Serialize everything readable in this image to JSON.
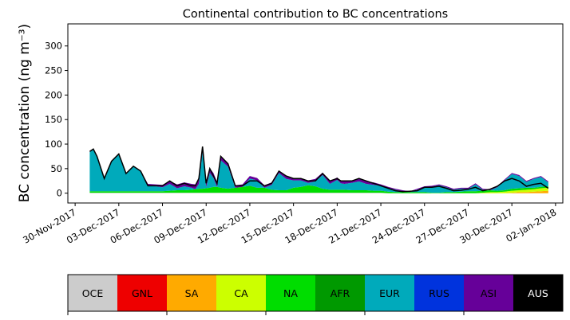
{
  "chart_data": {
    "type": "area",
    "title": "Continental contribution to BC concentrations",
    "ylabel": "BC concentration (ng m⁻³)",
    "xlabel": "",
    "xlim": [
      "2017-11-29T12:00",
      "2018-01-02T12:00"
    ],
    "ylim": [
      -20,
      345
    ],
    "yticks": [
      0,
      50,
      100,
      150,
      200,
      250,
      300
    ],
    "xticks": [
      "2017-11-30",
      "2017-12-03",
      "2017-12-06",
      "2017-12-09",
      "2017-12-12",
      "2017-12-15",
      "2017-12-18",
      "2017-12-21",
      "2017-12-24",
      "2017-12-27",
      "2017-12-30",
      "2018-01-02"
    ],
    "xtick_labels": [
      "30-Nov-2017",
      "03-Dec-2017",
      "06-Dec-2017",
      "09-Dec-2017",
      "12-Dec-2017",
      "15-Dec-2017",
      "18-Dec-2017",
      "21-Dec-2017",
      "24-Dec-2017",
      "27-Dec-2017",
      "30-Dec-2017",
      "02-Jan-2018"
    ],
    "legend": [
      {
        "label": "OCE",
        "color": "#cccccc",
        "text_color": "#000000"
      },
      {
        "label": "GNL",
        "color": "#ee0000",
        "text_color": "#000000"
      },
      {
        "label": "SA",
        "color": "#ffaa00",
        "text_color": "#000000"
      },
      {
        "label": "CA",
        "color": "#ccff00",
        "text_color": "#000000"
      },
      {
        "label": "NA",
        "color": "#00dd00",
        "text_color": "#000000"
      },
      {
        "label": "AFR",
        "color": "#009900",
        "text_color": "#000000"
      },
      {
        "label": "EUR",
        "color": "#00aabb",
        "text_color": "#000000"
      },
      {
        "label": "RUS",
        "color": "#0033dd",
        "text_color": "#000000"
      },
      {
        "label": "ASI",
        "color": "#660099",
        "text_color": "#000000"
      },
      {
        "label": "AUS",
        "color": "#000000",
        "text_color": "#ffffff"
      }
    ],
    "legend_placement": "bottom",
    "grid": false,
    "x": [
      "2017-12-01T00:00",
      "2017-12-01T06:00",
      "2017-12-01T12:00",
      "2017-12-02T00:00",
      "2017-12-02T12:00",
      "2017-12-03T00:00",
      "2017-12-03T12:00",
      "2017-12-04T00:00",
      "2017-12-04T12:00",
      "2017-12-05T00:00",
      "2017-12-05T12:00",
      "2017-12-06T00:00",
      "2017-12-06T12:00",
      "2017-12-07T00:00",
      "2017-12-07T12:00",
      "2017-12-08T00:00",
      "2017-12-08T06:00",
      "2017-12-08T12:00",
      "2017-12-08T18:00",
      "2017-12-09T00:00",
      "2017-12-09T06:00",
      "2017-12-09T12:00",
      "2017-12-09T18:00",
      "2017-12-10T00:00",
      "2017-12-10T12:00",
      "2017-12-11T00:00",
      "2017-12-11T12:00",
      "2017-12-12T00:00",
      "2017-12-12T12:00",
      "2017-12-13T00:00",
      "2017-12-13T12:00",
      "2017-12-14T00:00",
      "2017-12-14T12:00",
      "2017-12-15T00:00",
      "2017-12-15T12:00",
      "2017-12-16T00:00",
      "2017-12-16T12:00",
      "2017-12-17T00:00",
      "2017-12-17T12:00",
      "2017-12-18T00:00",
      "2017-12-18T06:00",
      "2017-12-18T12:00",
      "2017-12-19T00:00",
      "2017-12-19T12:00",
      "2017-12-20T00:00",
      "2017-12-20T12:00",
      "2017-12-21T00:00",
      "2017-12-21T12:00",
      "2017-12-22T00:00",
      "2017-12-22T12:00",
      "2017-12-23T00:00",
      "2017-12-23T12:00",
      "2017-12-24T00:00",
      "2017-12-24T12:00",
      "2017-12-25T00:00",
      "2017-12-25T12:00",
      "2017-12-26T00:00",
      "2017-12-26T12:00",
      "2017-12-27T00:00",
      "2017-12-27T12:00",
      "2017-12-28T00:00",
      "2017-12-28T12:00",
      "2017-12-29T00:00",
      "2017-12-29T12:00",
      "2017-12-30T00:00",
      "2017-12-30T12:00",
      "2017-12-31T00:00",
      "2017-12-31T12:00",
      "2018-01-01T00:00",
      "2018-01-01T12:00"
    ],
    "series": [
      {
        "label": "OCE",
        "values": [
          1,
          1,
          1,
          1,
          1,
          1,
          1,
          1,
          1,
          1,
          1,
          1,
          1,
          1,
          1,
          1,
          1,
          1,
          1,
          1,
          1,
          1,
          1,
          1,
          1,
          1,
          1,
          1,
          1,
          1,
          1,
          1,
          1,
          1,
          1,
          1,
          1,
          1,
          1,
          1,
          1,
          1,
          1,
          1,
          1,
          1,
          1,
          0,
          0,
          0,
          0,
          0,
          0,
          0,
          0,
          0,
          0,
          0,
          0,
          0,
          0,
          0,
          0,
          0,
          0,
          0,
          0,
          0,
          0,
          0
        ]
      },
      {
        "label": "GNL",
        "values": [
          0,
          0,
          0,
          0,
          0,
          0,
          0,
          0,
          0,
          0,
          0,
          0,
          0,
          0,
          0,
          0,
          0,
          0,
          0,
          0,
          0,
          0,
          0,
          0,
          0,
          0,
          0,
          0,
          0,
          0,
          0,
          0,
          0,
          0,
          0,
          0,
          0,
          0,
          0,
          0,
          0,
          0,
          0,
          0,
          0,
          0,
          0,
          0,
          0,
          0,
          0,
          0,
          0,
          0,
          0,
          0,
          0,
          0,
          0,
          0,
          0,
          0,
          0,
          0,
          0,
          0,
          0,
          0,
          0,
          0
        ]
      },
      {
        "label": "SA",
        "values": [
          0,
          0,
          0,
          0,
          0,
          0,
          0,
          0,
          0,
          0,
          0,
          0,
          0,
          0,
          0,
          0,
          0,
          0,
          0,
          0,
          0,
          0,
          0,
          0,
          0,
          0,
          0,
          0,
          0,
          0,
          0,
          0,
          0,
          0,
          0,
          0,
          0,
          0,
          0,
          0,
          0,
          0,
          0,
          0,
          0,
          0,
          0,
          0,
          0,
          0,
          0,
          0,
          0,
          0,
          0,
          0,
          0,
          0,
          0,
          0,
          0,
          0,
          0,
          0,
          1,
          2,
          2,
          3,
          4,
          5
        ]
      },
      {
        "label": "CA",
        "values": [
          0,
          0,
          0,
          0,
          0,
          0,
          0,
          0,
          0,
          0,
          0,
          0,
          0,
          0,
          0,
          0,
          0,
          0,
          0,
          0,
          0,
          0,
          0,
          0,
          0,
          0,
          0,
          0,
          0,
          0,
          0,
          0,
          0,
          0,
          0,
          0,
          0,
          0,
          0,
          0,
          0,
          0,
          0,
          0,
          0,
          0,
          0,
          0,
          0,
          0,
          0,
          0,
          0,
          0,
          0,
          0,
          0,
          0,
          0,
          0,
          1,
          2,
          2,
          3,
          4,
          4,
          5,
          5,
          6,
          6
        ]
      },
      {
        "label": "NA",
        "values": [
          3,
          3,
          3,
          3,
          3,
          3,
          3,
          3,
          3,
          3,
          3,
          3,
          4,
          5,
          5,
          6,
          7,
          8,
          8,
          9,
          10,
          12,
          12,
          10,
          8,
          10,
          12,
          14,
          10,
          10,
          6,
          5,
          5,
          10,
          12,
          15,
          13,
          8,
          6,
          6,
          6,
          6,
          5,
          5,
          5,
          4,
          4,
          3,
          2,
          2,
          2,
          2,
          2,
          1,
          1,
          2,
          2,
          3,
          4,
          4,
          4,
          4,
          3,
          3,
          4,
          4,
          4,
          3,
          3,
          3
        ]
      },
      {
        "label": "AFR",
        "values": [
          0,
          0,
          0,
          0,
          0,
          0,
          0,
          0,
          0,
          0,
          0,
          0,
          0,
          0,
          0,
          0,
          0,
          0,
          0,
          0,
          0,
          0,
          0,
          0,
          0,
          0,
          0,
          0,
          0,
          0,
          0,
          0,
          0,
          0,
          0,
          0,
          0,
          0,
          0,
          0,
          0,
          0,
          0,
          0,
          0,
          0,
          0,
          0,
          0,
          0,
          0,
          0,
          0,
          0,
          0,
          0,
          0,
          0,
          0,
          0,
          0,
          0,
          0,
          0,
          0,
          0,
          0,
          0,
          0,
          0
        ]
      },
      {
        "label": "EUR",
        "values": [
          80,
          85,
          70,
          25,
          60,
          75,
          35,
          50,
          40,
          12,
          10,
          8,
          14,
          4,
          8,
          4,
          0,
          10,
          75,
          3,
          30,
          18,
          0,
          56,
          45,
          0,
          0,
          15,
          15,
          0,
          10,
          35,
          23,
          15,
          13,
          5,
          10,
          28,
          12,
          20,
          13,
          12,
          15,
          18,
          13,
          12,
          10,
          8,
          5,
          2,
          0,
          5,
          10,
          12,
          15,
          10,
          5,
          6,
          5,
          14,
          2,
          0,
          7,
          20,
          30,
          25,
          12,
          18,
          20,
          8
        ]
      },
      {
        "label": "RUS",
        "values": [
          0,
          0,
          0,
          0,
          0,
          0,
          0,
          0,
          0,
          0,
          0,
          0,
          0,
          0,
          0,
          0,
          0,
          0,
          0,
          0,
          0,
          0,
          0,
          0,
          0,
          0,
          0,
          0,
          0,
          0,
          0,
          0,
          0,
          0,
          0,
          0,
          0,
          0,
          0,
          0,
          0,
          0,
          0,
          0,
          0,
          0,
          0,
          0,
          0,
          0,
          0,
          0,
          0,
          0,
          0,
          0,
          0,
          0,
          0,
          0,
          0,
          0,
          0,
          0,
          0,
          0,
          0,
          0,
          0,
          0
        ]
      },
      {
        "label": "ASI",
        "values": [
          2,
          2,
          2,
          2,
          2,
          2,
          2,
          2,
          2,
          3,
          4,
          5,
          6,
          8,
          8,
          8,
          10,
          12,
          12,
          10,
          10,
          10,
          10,
          8,
          5,
          5,
          5,
          5,
          5,
          5,
          5,
          5,
          5,
          5,
          5,
          5,
          5,
          5,
          5,
          5,
          5,
          5,
          5,
          5,
          5,
          5,
          3,
          2,
          2,
          2,
          2,
          2,
          2,
          2,
          2,
          2,
          2,
          2,
          2,
          2,
          2,
          2,
          2,
          2,
          2,
          2,
          2,
          2,
          2,
          2
        ]
      },
      {
        "label": "AUS",
        "values": [
          0,
          0,
          0,
          0,
          0,
          0,
          0,
          0,
          0,
          0,
          0,
          0,
          0,
          0,
          0,
          0,
          0,
          0,
          0,
          0,
          0,
          0,
          0,
          0,
          0,
          0,
          0,
          0,
          0,
          0,
          0,
          0,
          0,
          0,
          0,
          0,
          0,
          0,
          0,
          0,
          0,
          0,
          0,
          0,
          0,
          0,
          0,
          0,
          0,
          0,
          0,
          0,
          0,
          0,
          0,
          0,
          0,
          0,
          0,
          0,
          0,
          0,
          0,
          0,
          0,
          0,
          0,
          0,
          0,
          0
        ]
      }
    ],
    "total": [
      85,
      90,
      75,
      30,
      65,
      80,
      40,
      55,
      45,
      15,
      15,
      15,
      25,
      15,
      20,
      15,
      15,
      30,
      95,
      20,
      50,
      35,
      20,
      75,
      60,
      15,
      15,
      25,
      25,
      15,
      20,
      45,
      35,
      30,
      30,
      25,
      25,
      40,
      25,
      30,
      25,
      25,
      25,
      30,
      25,
      20,
      15,
      10,
      5,
      3,
      4,
      5,
      12,
      12,
      14,
      10,
      5,
      6,
      8,
      12,
      5,
      8,
      14,
      25,
      30,
      25,
      14,
      18,
      20,
      10
    ]
  }
}
